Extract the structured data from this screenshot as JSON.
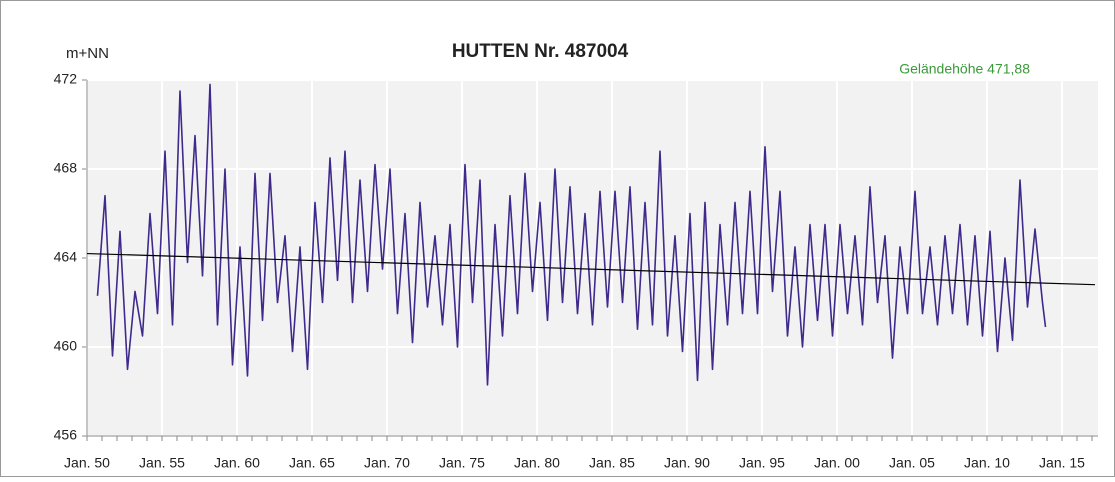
{
  "chart_data": {
    "type": "line",
    "title": "HUTTEN  Nr. 487004",
    "y_label": "m+NN",
    "annotation": "Geländehöhe 471,88",
    "annotation_color": "#3a9a3a",
    "grid": true,
    "xlim": [
      1950,
      2017.4
    ],
    "ylim": [
      456,
      472
    ],
    "yticks": [
      456,
      460,
      464,
      468,
      472
    ],
    "xticks": [
      {
        "value": 1950,
        "label": "Jan. 50"
      },
      {
        "value": 1955,
        "label": "Jan. 55"
      },
      {
        "value": 1960,
        "label": "Jan. 60"
      },
      {
        "value": 1965,
        "label": "Jan. 65"
      },
      {
        "value": 1970,
        "label": "Jan. 70"
      },
      {
        "value": 1975,
        "label": "Jan. 75"
      },
      {
        "value": 1980,
        "label": "Jan. 80"
      },
      {
        "value": 1985,
        "label": "Jan. 85"
      },
      {
        "value": 1990,
        "label": "Jan. 90"
      },
      {
        "value": 1995,
        "label": "Jan. 95"
      },
      {
        "value": 2000,
        "label": "Jan. 00"
      },
      {
        "value": 2005,
        "label": "Jan. 05"
      },
      {
        "value": 2010,
        "label": "Jan. 10"
      },
      {
        "value": 2015,
        "label": "Jan. 15"
      }
    ],
    "x": [
      1950.7,
      1951.2,
      1951.7,
      1952.2,
      1952.7,
      1953.2,
      1953.7,
      1954.2,
      1954.7,
      1955.2,
      1955.7,
      1956.2,
      1956.7,
      1957.2,
      1957.7,
      1958.2,
      1958.7,
      1959.2,
      1959.7,
      1960.2,
      1960.7,
      1961.2,
      1961.7,
      1962.2,
      1962.7,
      1963.2,
      1963.7,
      1964.2,
      1964.7,
      1965.2,
      1965.7,
      1966.2,
      1966.7,
      1967.2,
      1967.7,
      1968.2,
      1968.7,
      1969.2,
      1969.7,
      1970.2,
      1970.7,
      1971.2,
      1971.7,
      1972.2,
      1972.7,
      1973.2,
      1973.7,
      1974.2,
      1974.7,
      1975.2,
      1975.7,
      1976.2,
      1976.7,
      1977.2,
      1977.7,
      1978.2,
      1978.7,
      1979.2,
      1979.7,
      1980.2,
      1980.7,
      1981.2,
      1981.7,
      1982.2,
      1982.7,
      1983.2,
      1983.7,
      1984.2,
      1984.7,
      1985.2,
      1985.7,
      1986.2,
      1986.7,
      1987.2,
      1987.7,
      1988.2,
      1988.7,
      1989.2,
      1989.7,
      1990.2,
      1990.7,
      1991.2,
      1991.7,
      1992.2,
      1992.7,
      1993.2,
      1993.7,
      1994.2,
      1994.7,
      1995.2,
      1995.7,
      1996.2,
      1996.7,
      1997.2,
      1997.7,
      1998.2,
      1998.7,
      1999.2,
      1999.7,
      2000.2,
      2000.7,
      2001.2,
      2001.7,
      2002.2,
      2002.7,
      2003.2,
      2003.7,
      2004.2,
      2004.7,
      2005.2,
      2005.7,
      2006.2,
      2006.7,
      2007.2,
      2007.7,
      2008.2,
      2008.7,
      2009.2,
      2009.7,
      2010.2,
      2010.7,
      2011.2,
      2011.7,
      2012.2,
      2012.7,
      2013.2,
      2013.7,
      2013.9
    ],
    "series": [
      {
        "color": "#3f2a8c",
        "values": [
          462.3,
          466.8,
          459.6,
          465.2,
          459.0,
          462.5,
          460.5,
          466.0,
          461.5,
          468.8,
          461.0,
          471.5,
          463.8,
          469.5,
          463.2,
          471.8,
          461.0,
          468.0,
          459.2,
          464.5,
          458.7,
          467.8,
          461.2,
          467.8,
          462.0,
          465.0,
          459.8,
          464.5,
          459.0,
          466.5,
          462.0,
          468.5,
          463.0,
          468.8,
          462.0,
          467.5,
          462.5,
          468.2,
          463.5,
          468.0,
          461.5,
          466.0,
          460.2,
          466.5,
          461.8,
          465.0,
          461.0,
          465.5,
          460.0,
          468.2,
          462.0,
          467.5,
          458.3,
          465.5,
          460.5,
          466.8,
          461.5,
          467.8,
          462.5,
          466.5,
          461.2,
          468.0,
          462.0,
          467.2,
          461.5,
          466.0,
          461.0,
          467.0,
          461.8,
          467.0,
          462.0,
          467.2,
          460.8,
          466.5,
          461.0,
          468.8,
          460.5,
          465.0,
          459.8,
          466.0,
          458.5,
          466.5,
          459.0,
          465.5,
          461.0,
          466.5,
          461.5,
          467.0,
          461.5,
          469.0,
          462.5,
          467.0,
          460.5,
          464.5,
          460.0,
          465.5,
          461.2,
          465.5,
          460.5,
          465.5,
          461.5,
          465.0,
          461.0,
          467.2,
          462.0,
          465.0,
          459.5,
          464.5,
          461.5,
          467.0,
          461.5,
          464.5,
          461.0,
          465.0,
          461.5,
          465.5,
          461.0,
          465.0,
          460.5,
          465.2,
          459.8,
          464.0,
          460.3,
          467.5,
          461.8,
          465.3,
          462.0,
          460.9
        ]
      }
    ],
    "trend": {
      "color": "#000000",
      "x": [
        1950,
        2017.2
      ],
      "values": [
        464.2,
        462.8
      ]
    }
  }
}
